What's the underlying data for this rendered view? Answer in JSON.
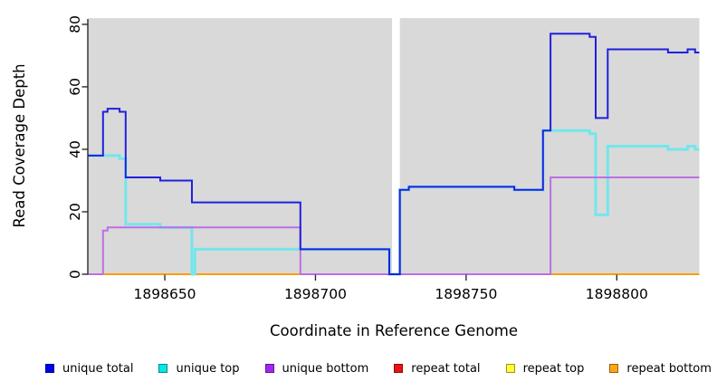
{
  "chart_data": {
    "type": "line",
    "step": true,
    "title": "",
    "xlabel": "Coordinate in Reference Genome",
    "ylabel": "Read Coverage Depth",
    "x_ticks": [
      1898650,
      1898700,
      1898750,
      1898800
    ],
    "y_ticks": [
      0,
      20,
      40,
      60,
      80
    ],
    "xlim": [
      1898624.6,
      1898827.4
    ],
    "ylim": [
      0,
      82
    ],
    "grid": false,
    "legend_position": "bottom",
    "plot_background": "#d9d9d9",
    "page_background": "#ffffff",
    "axis_color": "#2b2b2b",
    "gap_region": {
      "start": 1898725.4,
      "end": 1898728,
      "color": "#ffffff"
    },
    "series": [
      {
        "name": "unique total",
        "swatch_color": "#0000ee",
        "line_color": "#2020de",
        "line_width": 2,
        "z": 6,
        "points": [
          [
            1898624.6,
            38
          ],
          [
            1898629.5,
            52
          ],
          [
            1898631,
            53
          ],
          [
            1898635,
            52
          ],
          [
            1898637,
            31
          ],
          [
            1898648.5,
            30
          ],
          [
            1898659,
            23
          ],
          [
            1898695,
            8
          ],
          [
            1898724.5,
            0
          ],
          [
            1898728,
            27
          ],
          [
            1898731,
            28
          ],
          [
            1898766,
            27
          ],
          [
            1898775.5,
            46
          ],
          [
            1898778,
            77
          ],
          [
            1898791,
            76
          ],
          [
            1898793,
            50
          ],
          [
            1898797,
            72
          ],
          [
            1898817,
            71
          ],
          [
            1898823.5,
            72
          ],
          [
            1898826,
            71
          ],
          [
            1898827.4,
            71
          ]
        ]
      },
      {
        "name": "unique top",
        "swatch_color": "#00e8e8",
        "line_color": "#73e6ec",
        "line_width": 3,
        "z": 4,
        "points": [
          [
            1898624.6,
            38
          ],
          [
            1898635,
            37
          ],
          [
            1898637,
            16
          ],
          [
            1898648.5,
            15
          ],
          [
            1898659,
            0
          ],
          [
            1898660,
            8
          ],
          [
            1898724.5,
            0
          ],
          [
            1898728,
            27
          ],
          [
            1898731,
            28
          ],
          [
            1898766,
            27
          ],
          [
            1898775.5,
            46
          ],
          [
            1898791,
            45
          ],
          [
            1898793,
            19
          ],
          [
            1898797,
            41
          ],
          [
            1898817,
            40
          ],
          [
            1898823.5,
            41
          ],
          [
            1898826,
            40
          ],
          [
            1898827.4,
            40
          ]
        ]
      },
      {
        "name": "unique bottom",
        "swatch_color": "#a128f0",
        "line_color": "#bc6fe4",
        "line_width": 2,
        "z": 5,
        "points": [
          [
            1898624.6,
            0
          ],
          [
            1898629.5,
            14
          ],
          [
            1898631,
            15
          ],
          [
            1898695,
            0
          ],
          [
            1898778,
            31
          ],
          [
            1898827.4,
            31
          ]
        ]
      },
      {
        "name": "repeat total",
        "swatch_color": "#ee1111",
        "line_color": "#e02020",
        "line_width": 1.5,
        "z": 2,
        "points": [
          [
            1898624.6,
            0
          ],
          [
            1898827.4,
            0
          ]
        ]
      },
      {
        "name": "repeat top",
        "swatch_color": "#ffff33",
        "line_color": "#f5e800",
        "line_width": 1.5,
        "z": 1,
        "points": [
          [
            1898624.6,
            0
          ],
          [
            1898827.4,
            0
          ]
        ]
      },
      {
        "name": "repeat bottom",
        "swatch_color": "#ffa516",
        "line_color": "#ff9d00",
        "line_width": 2,
        "z": 3,
        "points": [
          [
            1898624.6,
            0
          ],
          [
            1898827.4,
            0
          ]
        ]
      }
    ]
  }
}
